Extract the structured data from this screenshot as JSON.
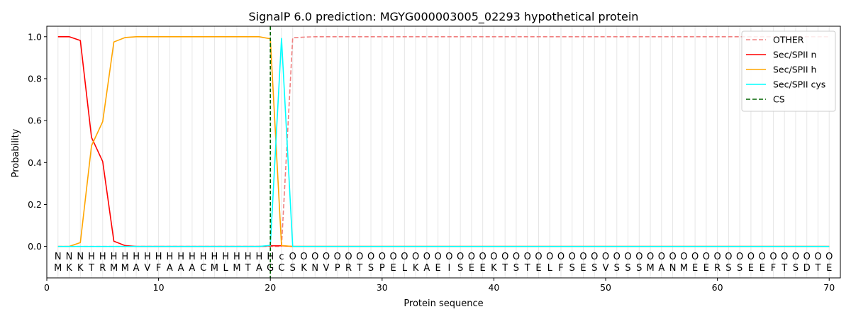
{
  "chart_data": {
    "type": "line",
    "title": "SignalP 6.0 prediction: MGYG000003005_02293 hypothetical protein",
    "xlabel": "Protein sequence",
    "ylabel": "Probability",
    "xlim": [
      0,
      71
    ],
    "ylim": [
      -0.15,
      1.05
    ],
    "xticks": [
      0,
      10,
      20,
      30,
      40,
      50,
      60,
      70
    ],
    "yticks": [
      0.0,
      0.2,
      0.4,
      0.6,
      0.8,
      1.0
    ],
    "xtick_labels": [
      "0",
      "10",
      "20",
      "30",
      "40",
      "50",
      "60",
      "70"
    ],
    "ytick_labels": [
      "0.0",
      "0.2",
      "0.4",
      "0.6",
      "0.8",
      "1.0"
    ],
    "grid": "vertical lines at each residue",
    "legend_position": "top-right",
    "sequence": "MKKTRMMAVFAAACMLMTAGCSKNVPRTSPELKAEISEEKTSTELFSESVSSSMANMEERSSEEFTSDTE",
    "annotation": "NNNHHHHHHHHHHHHHHHHHcOOOOOOOOOOOOOOOOOOOOOOOOOOOOOOOOOOOOOOOOOOOOOOOOO",
    "annotation_colors": {
      "N": "#ff0000",
      "H": "#ffa500",
      "c": "#00ffff",
      "O": "#808080"
    },
    "cleavage_site": 20,
    "series": [
      {
        "name": "OTHER",
        "color": "#f08080",
        "dash": true,
        "values": [
          0,
          0,
          0,
          0,
          0,
          0,
          0,
          0,
          0,
          0,
          0,
          0,
          0,
          0,
          0,
          0,
          0,
          0,
          0,
          0,
          0,
          0.995,
          0.998,
          1,
          1,
          1,
          1,
          1,
          1,
          1,
          1,
          1,
          1,
          1,
          1,
          1,
          1,
          1,
          1,
          1,
          1,
          1,
          1,
          1,
          1,
          1,
          1,
          1,
          1,
          1,
          1,
          1,
          1,
          1,
          1,
          1,
          1,
          1,
          1,
          1,
          1,
          1,
          1,
          1,
          1,
          1,
          1,
          1,
          1,
          1
        ]
      },
      {
        "name": "Sec/SPII n",
        "color": "#ff0000",
        "dash": false,
        "values": [
          1.0,
          1.0,
          0.982,
          0.52,
          0.405,
          0.025,
          0.004,
          0,
          0,
          0,
          0,
          0,
          0,
          0,
          0,
          0,
          0,
          0,
          0,
          0.003,
          0.003,
          0,
          0,
          0,
          0,
          0,
          0,
          0,
          0,
          0,
          0,
          0,
          0,
          0,
          0,
          0,
          0,
          0,
          0,
          0,
          0,
          0,
          0,
          0,
          0,
          0,
          0,
          0,
          0,
          0,
          0,
          0,
          0,
          0,
          0,
          0,
          0,
          0,
          0,
          0,
          0,
          0,
          0,
          0,
          0,
          0,
          0,
          0,
          0,
          0
        ]
      },
      {
        "name": "Sec/SPII h",
        "color": "#ffa500",
        "dash": false,
        "values": [
          0,
          0,
          0.018,
          0.48,
          0.595,
          0.975,
          0.996,
          1.0,
          1.0,
          1.0,
          1.0,
          1.0,
          1.0,
          1.0,
          1.0,
          1.0,
          1.0,
          1.0,
          1.0,
          0.99,
          0.004,
          0,
          0,
          0,
          0,
          0,
          0,
          0,
          0,
          0,
          0,
          0,
          0,
          0,
          0,
          0,
          0,
          0,
          0,
          0,
          0,
          0,
          0,
          0,
          0,
          0,
          0,
          0,
          0,
          0,
          0,
          0,
          0,
          0,
          0,
          0,
          0,
          0,
          0,
          0,
          0,
          0,
          0,
          0,
          0,
          0,
          0,
          0,
          0,
          0
        ]
      },
      {
        "name": "Sec/SPII cys",
        "color": "#00ffff",
        "dash": false,
        "values": [
          0,
          0,
          0,
          0,
          0,
          0,
          0,
          0,
          0,
          0,
          0,
          0,
          0,
          0,
          0,
          0,
          0,
          0,
          0,
          0.005,
          0.992,
          0,
          0,
          0,
          0,
          0,
          0,
          0,
          0,
          0,
          0,
          0,
          0,
          0,
          0,
          0,
          0,
          0,
          0,
          0,
          0,
          0,
          0,
          0,
          0,
          0,
          0,
          0,
          0,
          0,
          0,
          0,
          0,
          0,
          0,
          0,
          0,
          0,
          0,
          0,
          0,
          0,
          0,
          0,
          0,
          0,
          0,
          0,
          0,
          0
        ]
      },
      {
        "name": "CS",
        "color": "#006400",
        "dash": true,
        "values": []
      }
    ]
  }
}
